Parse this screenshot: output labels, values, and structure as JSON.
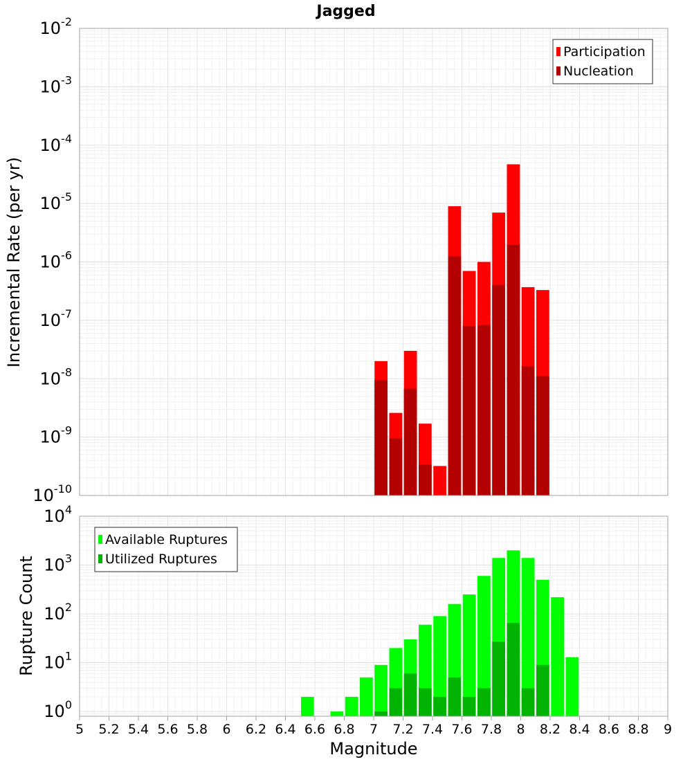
{
  "chart_data": [
    {
      "type": "bar",
      "title": "Jagged",
      "xlabel": "",
      "ylabel": "Incremental Rate (per yr)",
      "yscale": "log",
      "ylim": [
        1e-10,
        0.01
      ],
      "y_tick_labels": [
        {
          "base": "10",
          "exp": "-10"
        },
        {
          "base": "10",
          "exp": "-9"
        },
        {
          "base": "10",
          "exp": "-8"
        },
        {
          "base": "10",
          "exp": "-7"
        },
        {
          "base": "10",
          "exp": "-6"
        },
        {
          "base": "10",
          "exp": "-5"
        },
        {
          "base": "10",
          "exp": "-4"
        },
        {
          "base": "10",
          "exp": "-3"
        },
        {
          "base": "10",
          "exp": "-2"
        }
      ],
      "x": [
        7.05,
        7.15,
        7.25,
        7.35,
        7.45,
        7.55,
        7.65,
        7.75,
        7.85,
        7.95,
        8.05,
        8.15
      ],
      "series": [
        {
          "name": "Participation",
          "color": "#ff0000",
          "values": [
            2e-08,
            2.6e-09,
            3e-08,
            1.7e-09,
            3.2e-10,
            9e-06,
            7e-07,
            1e-06,
            7e-06,
            4.7e-05,
            3.7e-07,
            3.3e-07
          ]
        },
        {
          "name": "Nucleation",
          "color": "#b30000",
          "values": [
            9.5e-09,
            9.5e-10,
            6.8e-09,
            3.4e-10,
            null,
            1.25e-06,
            8e-08,
            8.3e-08,
            4e-07,
            1.95e-06,
            1.65e-08,
            1.1e-08
          ]
        }
      ],
      "legend": "top-right",
      "grid": true
    },
    {
      "type": "bar",
      "title": "",
      "xlabel": "Magnitude",
      "ylabel": "Rupture Count",
      "yscale": "log",
      "ylim": [
        0.8,
        10000
      ],
      "xlim": [
        5,
        9
      ],
      "x_ticks": [
        "5",
        "5.2",
        "5.4",
        "5.6",
        "5.8",
        "6",
        "6.2",
        "6.4",
        "6.6",
        "6.8",
        "7",
        "7.2",
        "7.4",
        "7.6",
        "7.8",
        "8",
        "8.2",
        "8.4",
        "8.6",
        "8.8",
        "9"
      ],
      "y_tick_labels": [
        {
          "base": "10",
          "exp": "0"
        },
        {
          "base": "10",
          "exp": "1"
        },
        {
          "base": "10",
          "exp": "2"
        },
        {
          "base": "10",
          "exp": "3"
        },
        {
          "base": "10",
          "exp": "4"
        }
      ],
      "x": [
        6.55,
        6.75,
        6.85,
        6.95,
        7.05,
        7.15,
        7.25,
        7.35,
        7.45,
        7.55,
        7.65,
        7.75,
        7.85,
        7.95,
        8.05,
        8.15,
        8.25,
        8.35
      ],
      "series": [
        {
          "name": "Available Ruptures",
          "color": "#00ff00",
          "values": [
            2,
            1,
            2,
            5,
            9,
            20,
            30,
            60,
            90,
            160,
            250,
            600,
            1400,
            2000,
            1400,
            500,
            220,
            13
          ]
        },
        {
          "name": "Utilized Ruptures",
          "color": "#00b300",
          "values": [
            null,
            null,
            null,
            null,
            1,
            3,
            6,
            3,
            2,
            5,
            2,
            3,
            27,
            65,
            3,
            9,
            null,
            null
          ]
        }
      ],
      "legend": "top-left",
      "grid": true
    }
  ]
}
